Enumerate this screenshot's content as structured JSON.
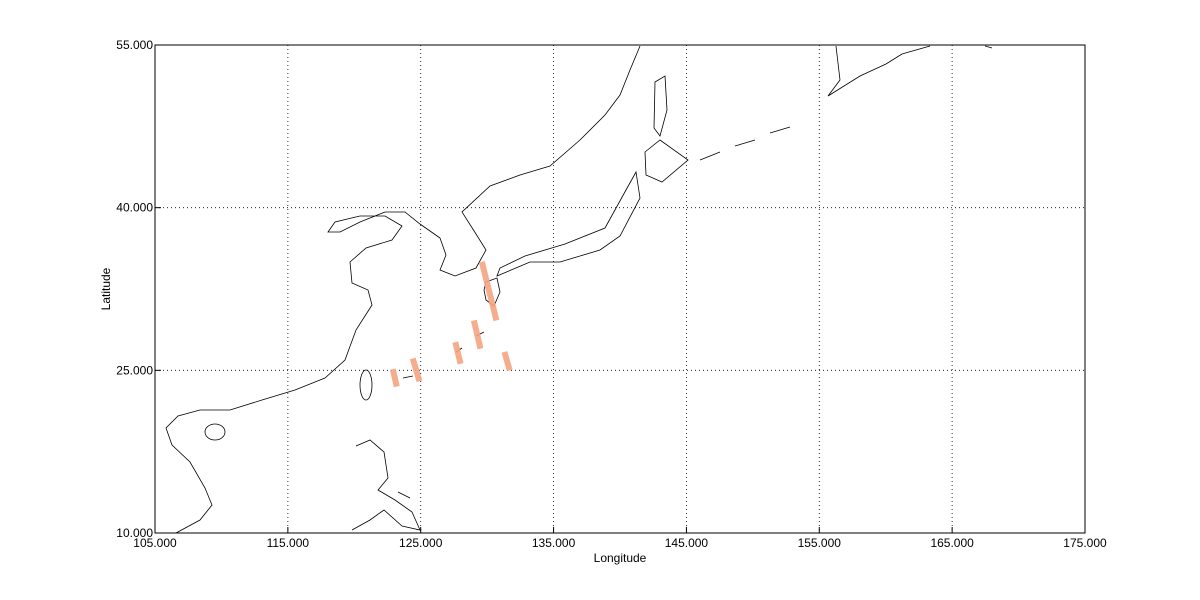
{
  "chart_data": {
    "type": "swath-map",
    "xlabel": "Longitude",
    "ylabel": "Latitude",
    "xlim": [
      105,
      175
    ],
    "ylim": [
      10,
      55
    ],
    "xticks": [
      {
        "value": 105,
        "label": "105.000"
      },
      {
        "value": 115,
        "label": "115.000"
      },
      {
        "value": 125,
        "label": "125.000"
      },
      {
        "value": 135,
        "label": "135.000"
      },
      {
        "value": 145,
        "label": "145.000"
      },
      {
        "value": 155,
        "label": "155.000"
      },
      {
        "value": 165,
        "label": "165.000"
      },
      {
        "value": 175,
        "label": "175.000"
      }
    ],
    "yticks": [
      {
        "value": 10,
        "label": "10.000"
      },
      {
        "value": 25,
        "label": "25.000"
      },
      {
        "value": 40,
        "label": "40.000"
      },
      {
        "value": 55,
        "label": "55.000"
      }
    ],
    "grid": true,
    "color": "#f4a582",
    "segments": [
      {
        "lon": [
          122.9,
          123.2
        ],
        "lat": [
          25.1,
          23.5
        ]
      },
      {
        "lon": [
          124.4,
          124.9
        ],
        "lat": [
          26.1,
          24.0
        ]
      },
      {
        "lon": [
          127.6,
          128.0
        ],
        "lat": [
          27.6,
          25.6
        ]
      },
      {
        "lon": [
          129.0,
          129.5
        ],
        "lat": [
          29.6,
          27.0
        ]
      },
      {
        "lon": [
          129.6,
          130.7
        ],
        "lat": [
          35.0,
          29.6
        ]
      },
      {
        "lon": [
          131.3,
          131.7
        ],
        "lat": [
          26.7,
          25.0
        ]
      }
    ]
  }
}
